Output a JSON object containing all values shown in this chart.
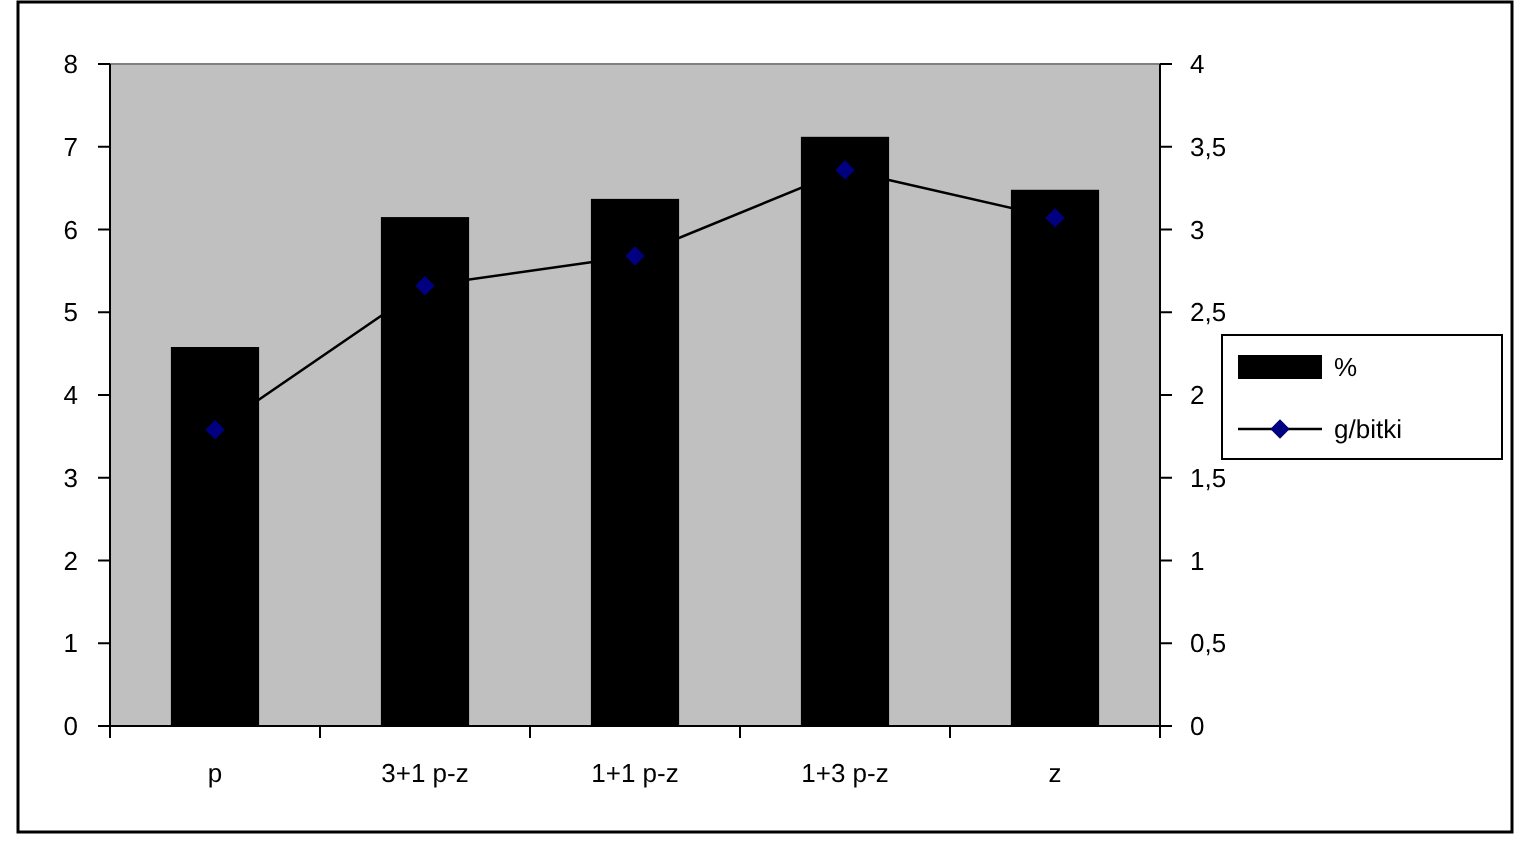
{
  "chart_data": {
    "type": "bar",
    "categories": [
      "p",
      "3+1 p-z",
      "1+1 p-z",
      "1+3 p-z",
      "z"
    ],
    "series": [
      {
        "name": "%",
        "color": "#000000",
        "values": [
          4.58,
          6.15,
          6.37,
          7.12,
          6.48
        ]
      },
      {
        "name": "g/bitki",
        "type": "line",
        "axis": "y2",
        "color": "#000000",
        "marker": "diamond",
        "values": [
          1.79,
          2.66,
          2.84,
          3.36,
          3.07
        ]
      }
    ],
    "ylim": [
      0,
      8
    ],
    "yticks": [
      0,
      1,
      2,
      3,
      4,
      5,
      6,
      7,
      8
    ],
    "y2lim": [
      0,
      4
    ],
    "y2ticks": [
      0,
      {
        "value": 0.5,
        "label": "0,5"
      },
      1,
      {
        "value": 1.5,
        "label": "1,5"
      },
      2,
      {
        "value": 2.5,
        "label": "2,5"
      },
      3,
      {
        "value": 3.5,
        "label": "3,5"
      },
      4
    ],
    "grid": false,
    "legend": "right"
  }
}
